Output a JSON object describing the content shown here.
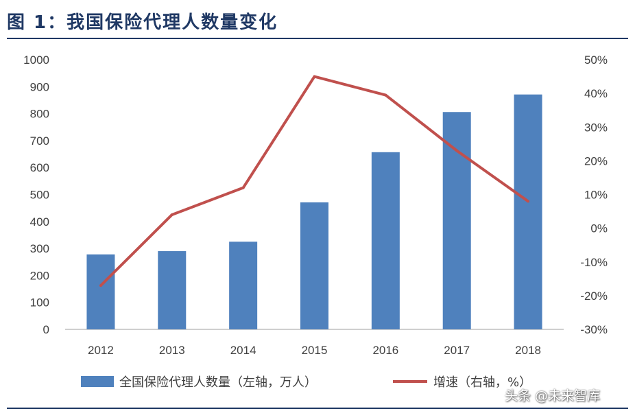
{
  "title": "图  1：我国保险代理人数量变化",
  "watermark": "头条 @未来智库",
  "colors": {
    "bar": "#4f81bd",
    "line": "#c0504d",
    "title": "#1f3864"
  },
  "chart_data": {
    "type": "bar+line",
    "categories": [
      "2012",
      "2013",
      "2014",
      "2015",
      "2016",
      "2017",
      "2018"
    ],
    "series": [
      {
        "name": "全国保险代理人数量（左轴，万人）",
        "type": "bar",
        "axis": "left",
        "values": [
          278,
          290,
          325,
          471,
          657,
          806,
          871
        ]
      },
      {
        "name": "增速（右轴，%）",
        "type": "line",
        "axis": "right",
        "values": [
          -17,
          4,
          12,
          45,
          39.5,
          23,
          8
        ]
      }
    ],
    "y_left": {
      "min": 0,
      "max": 1000,
      "step": 100,
      "ticks": [
        "0",
        "100",
        "200",
        "300",
        "400",
        "500",
        "600",
        "700",
        "800",
        "900",
        "1000"
      ]
    },
    "y_right": {
      "min": -30,
      "max": 50,
      "step": 10,
      "ticks": [
        "-30%",
        "-20%",
        "-10%",
        "0%",
        "10%",
        "20%",
        "30%",
        "40%",
        "50%"
      ]
    },
    "legend": {
      "position": "bottom"
    },
    "grid": false
  }
}
